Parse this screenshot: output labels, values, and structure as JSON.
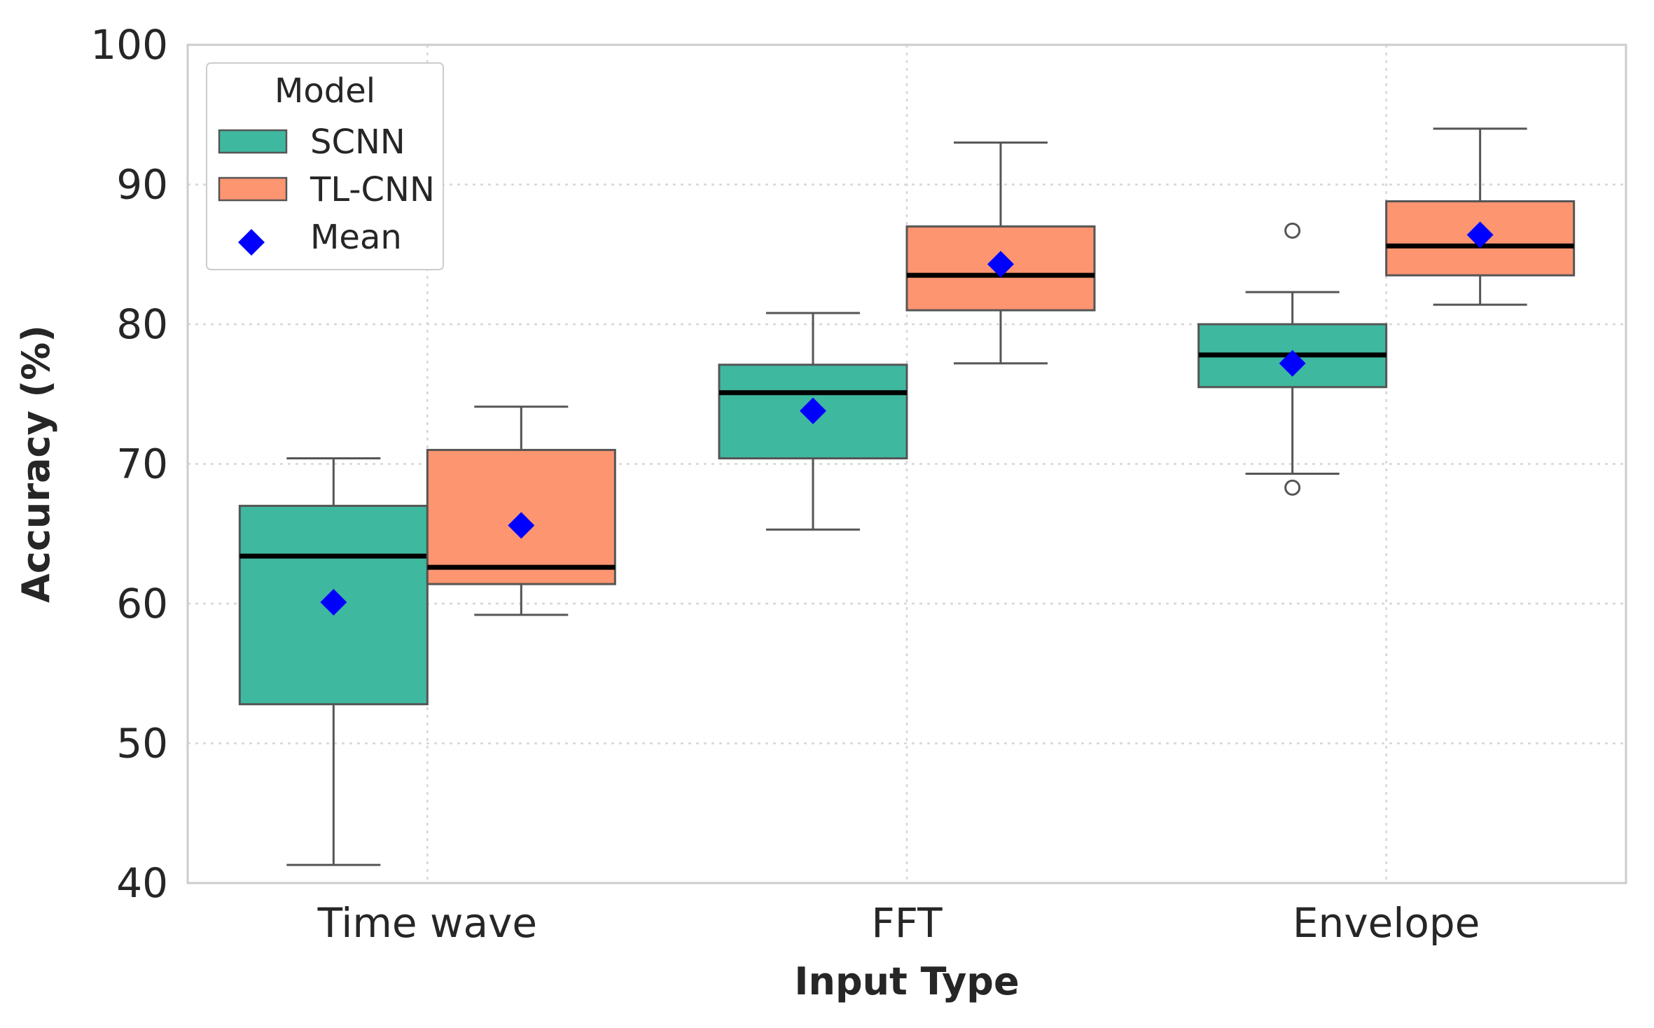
{
  "chart_data": {
    "type": "box",
    "title": "",
    "xlabel": "Input Type",
    "ylabel": "Accuracy (%)",
    "ylim": [
      40,
      100
    ],
    "yticks": [
      "40",
      "50",
      "60",
      "70",
      "80",
      "90",
      "100"
    ],
    "categories": [
      "Time wave",
      "FFT",
      "Envelope"
    ],
    "grid": true,
    "legend": {
      "title": "Model",
      "position": "top-left",
      "entries": [
        "SCNN",
        "TL-CNN",
        "Mean"
      ]
    },
    "colors": {
      "SCNN": "#3fb8a0",
      "TL-CNN": "#fd9571",
      "Mean": "#0000ff",
      "median": "#000000",
      "whisker": "#555555",
      "grid": "#d6d6d6",
      "frame": "#cccccc"
    },
    "series": [
      {
        "name": "SCNN",
        "boxes": [
          {
            "category": "Time wave",
            "whisker_low": 41.3,
            "q1": 52.8,
            "median": 63.4,
            "q3": 67.0,
            "whisker_high": 70.4,
            "mean": 60.1,
            "outliers": []
          },
          {
            "category": "FFT",
            "whisker_low": 65.3,
            "q1": 70.4,
            "median": 75.1,
            "q3": 77.1,
            "whisker_high": 80.8,
            "mean": 73.8,
            "outliers": []
          },
          {
            "category": "Envelope",
            "whisker_low": 69.3,
            "q1": 75.5,
            "median": 77.8,
            "q3": 80.0,
            "whisker_high": 82.3,
            "mean": 77.2,
            "outliers": [
              86.7,
              68.3
            ]
          }
        ]
      },
      {
        "name": "TL-CNN",
        "boxes": [
          {
            "category": "Time wave",
            "whisker_low": 59.2,
            "q1": 61.4,
            "median": 62.6,
            "q3": 71.0,
            "whisker_high": 74.1,
            "mean": 65.6,
            "outliers": []
          },
          {
            "category": "FFT",
            "whisker_low": 77.2,
            "q1": 81.0,
            "median": 83.5,
            "q3": 87.0,
            "whisker_high": 93.0,
            "mean": 84.3,
            "outliers": []
          },
          {
            "category": "Envelope",
            "whisker_low": 81.4,
            "q1": 83.5,
            "median": 85.6,
            "q3": 88.8,
            "whisker_high": 94.0,
            "mean": 86.4,
            "outliers": []
          }
        ]
      }
    ]
  }
}
